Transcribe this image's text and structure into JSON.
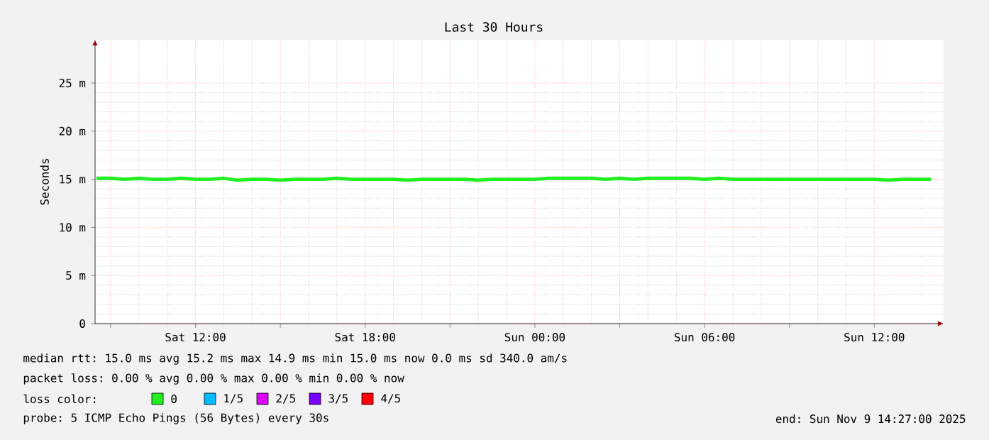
{
  "chart_data": {
    "type": "line",
    "title": "Last 30 Hours",
    "ylabel": "Seconds",
    "x": [
      "2025-11-08T08:30",
      "2025-11-08T09:00",
      "2025-11-08T09:30",
      "2025-11-08T10:00",
      "2025-11-08T10:30",
      "2025-11-08T11:00",
      "2025-11-08T11:30",
      "2025-11-08T12:00",
      "2025-11-08T12:30",
      "2025-11-08T13:00",
      "2025-11-08T13:30",
      "2025-11-08T14:00",
      "2025-11-08T14:30",
      "2025-11-08T15:00",
      "2025-11-08T15:30",
      "2025-11-08T16:00",
      "2025-11-08T16:30",
      "2025-11-08T17:00",
      "2025-11-08T17:30",
      "2025-11-08T18:00",
      "2025-11-08T18:30",
      "2025-11-08T19:00",
      "2025-11-08T19:30",
      "2025-11-08T20:00",
      "2025-11-08T20:30",
      "2025-11-08T21:00",
      "2025-11-08T21:30",
      "2025-11-08T22:00",
      "2025-11-08T22:30",
      "2025-11-08T23:00",
      "2025-11-08T23:30",
      "2025-11-09T00:00",
      "2025-11-09T00:30",
      "2025-11-09T01:00",
      "2025-11-09T01:30",
      "2025-11-09T02:00",
      "2025-11-09T02:30",
      "2025-11-09T03:00",
      "2025-11-09T03:30",
      "2025-11-09T04:00",
      "2025-11-09T04:30",
      "2025-11-09T05:00",
      "2025-11-09T05:30",
      "2025-11-09T06:00",
      "2025-11-09T06:30",
      "2025-11-09T07:00",
      "2025-11-09T07:30",
      "2025-11-09T08:00",
      "2025-11-09T08:30",
      "2025-11-09T09:00",
      "2025-11-09T09:30",
      "2025-11-09T10:00",
      "2025-11-09T10:30",
      "2025-11-09T11:00",
      "2025-11-09T11:30",
      "2025-11-09T12:00",
      "2025-11-09T12:30",
      "2025-11-09T13:00",
      "2025-11-09T13:30",
      "2025-11-09T14:00"
    ],
    "series": [
      {
        "name": "0",
        "color": "#22ee22",
        "values": [
          15.1,
          15.1,
          15.0,
          15.1,
          15.0,
          15.0,
          15.1,
          15.0,
          15.0,
          15.1,
          14.9,
          15.0,
          15.0,
          14.9,
          15.0,
          15.0,
          15.0,
          15.1,
          15.0,
          15.0,
          15.0,
          15.0,
          14.9,
          15.0,
          15.0,
          15.0,
          15.0,
          14.9,
          15.0,
          15.0,
          15.0,
          15.0,
          15.1,
          15.1,
          15.1,
          15.1,
          15.0,
          15.1,
          15.0,
          15.1,
          15.1,
          15.1,
          15.1,
          15.0,
          15.1,
          15.0,
          15.0,
          15.0,
          15.0,
          15.0,
          15.0,
          15.0,
          15.0,
          15.0,
          15.0,
          15.0,
          14.9,
          15.0,
          15.0,
          15.0
        ]
      },
      {
        "name": "1/5",
        "color": "#00bbff",
        "values": [
          null,
          null,
          null,
          null,
          null,
          null,
          null,
          null,
          null,
          null,
          null,
          null,
          null,
          null,
          null,
          null,
          null,
          null,
          null,
          null,
          null,
          null,
          null,
          null,
          null,
          null,
          null,
          null,
          null,
          null,
          null,
          null,
          null,
          null,
          null,
          null,
          null,
          null,
          null,
          null,
          null,
          null,
          null,
          null,
          null,
          null,
          null,
          null,
          null,
          null,
          null,
          null,
          null,
          null,
          null,
          null,
          null,
          null,
          null,
          null
        ]
      },
      {
        "name": "2/5",
        "color": "#dd00ff",
        "values": [
          null,
          null,
          null,
          null,
          null,
          null,
          null,
          null,
          null,
          null,
          null,
          null,
          null,
          null,
          null,
          null,
          null,
          null,
          null,
          null,
          null,
          null,
          null,
          null,
          null,
          null,
          null,
          null,
          null,
          null,
          null,
          null,
          null,
          null,
          null,
          null,
          null,
          null,
          null,
          null,
          null,
          null,
          null,
          null,
          null,
          null,
          null,
          null,
          null,
          null,
          null,
          null,
          null,
          null,
          null,
          null,
          null,
          null,
          null,
          null
        ]
      },
      {
        "name": "3/5",
        "color": "#7700ff",
        "values": [
          null,
          null,
          null,
          null,
          null,
          null,
          null,
          null,
          null,
          null,
          null,
          null,
          null,
          null,
          null,
          null,
          null,
          null,
          null,
          null,
          null,
          null,
          null,
          null,
          null,
          null,
          null,
          null,
          null,
          null,
          null,
          null,
          null,
          null,
          null,
          null,
          null,
          null,
          null,
          null,
          null,
          null,
          null,
          null,
          null,
          null,
          null,
          null,
          null,
          null,
          null,
          null,
          null,
          null,
          null,
          null,
          null,
          null,
          null,
          null
        ]
      },
      {
        "name": "4/5",
        "color": "#ff0000",
        "values": [
          null,
          null,
          null,
          null,
          null,
          null,
          null,
          null,
          null,
          null,
          null,
          null,
          null,
          null,
          null,
          null,
          null,
          null,
          null,
          null,
          null,
          null,
          null,
          null,
          null,
          null,
          null,
          null,
          null,
          null,
          null,
          null,
          null,
          null,
          null,
          null,
          null,
          null,
          null,
          null,
          null,
          null,
          null,
          null,
          null,
          null,
          null,
          null,
          null,
          null,
          null,
          null,
          null,
          null,
          null,
          null,
          null,
          null,
          null,
          null
        ]
      }
    ],
    "legend_title": "loss color:",
    "legend": "bottom",
    "xlim": [
      "2025-11-08T08:27",
      "2025-11-09T14:27"
    ],
    "xticks": [
      {
        "value": "2025-11-08T09:00",
        "label": null
      },
      {
        "value": "2025-11-08T12:00",
        "label": "Sat 12:00"
      },
      {
        "value": "2025-11-08T15:00",
        "label": null
      },
      {
        "value": "2025-11-08T18:00",
        "label": "Sat 18:00"
      },
      {
        "value": "2025-11-08T21:00",
        "label": null
      },
      {
        "value": "2025-11-09T00:00",
        "label": "Sun 00:00"
      },
      {
        "value": "2025-11-09T03:00",
        "label": null
      },
      {
        "value": "2025-11-09T06:00",
        "label": "Sun 06:00"
      },
      {
        "value": "2025-11-09T09:00",
        "label": null
      },
      {
        "value": "2025-11-09T12:00",
        "label": "Sun 12:00"
      }
    ],
    "ylim": [
      0,
      29.5
    ],
    "yticks": [
      0,
      {
        "value": 5,
        "label": "5 m"
      },
      {
        "value": 10,
        "label": "10 m"
      },
      {
        "value": 15,
        "label": "15 m"
      },
      {
        "value": 20,
        "label": "20 m"
      },
      {
        "value": 25,
        "label": "25 m"
      }
    ],
    "grid": true,
    "annotations": [
      "median rtt: 15.0 ms avg 15.2 ms max 14.9 ms min 15.0 ms now 0.0 ms sd 340.0 am/s",
      "packet loss: 0.00 % avg 0.00 % max 0.00 % min 0.00 % now",
      "probe: 5 ICMP Echo Pings (56 Bytes) every 30s",
      "end: Sun Nov 9 14:27:00 2025"
    ]
  }
}
